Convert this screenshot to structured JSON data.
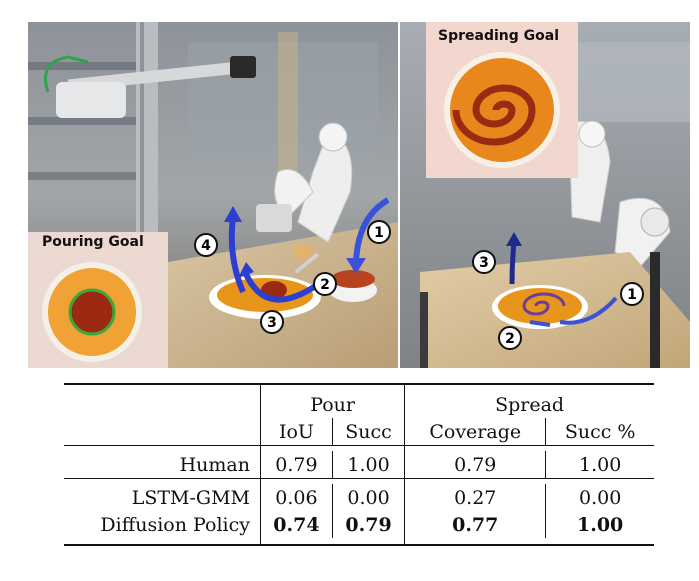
{
  "figure": {
    "pouring_goal_label": "Pouring Goal",
    "spreading_goal_label": "Spreading Goal",
    "left_steps": [
      "1",
      "2",
      "3",
      "4"
    ],
    "right_steps": [
      "1",
      "2",
      "3"
    ],
    "colors": {
      "arrow_blue": "#2b3fd0",
      "goal_green": "#3aa83a",
      "sauce": "#9c2a12",
      "plate_orange": "#e8951c"
    }
  },
  "table": {
    "groups": [
      "Pour",
      "Spread"
    ],
    "columns": [
      "IoU",
      "Succ",
      "Coverage",
      "Succ %"
    ],
    "rows": [
      {
        "label": "Human",
        "values": [
          "0.79",
          "1.00",
          "0.79",
          "1.00"
        ],
        "bold": [
          false,
          false,
          false,
          false
        ]
      },
      {
        "label": "LSTM-GMM",
        "values": [
          "0.06",
          "0.00",
          "0.27",
          "0.00"
        ],
        "bold": [
          false,
          false,
          false,
          false
        ]
      },
      {
        "label": "Diffusion Policy",
        "values": [
          "0.74",
          "0.79",
          "0.77",
          "1.00"
        ],
        "bold": [
          true,
          true,
          true,
          true
        ]
      }
    ]
  }
}
